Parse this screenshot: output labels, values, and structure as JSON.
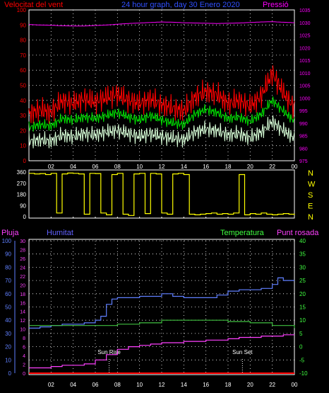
{
  "chart_data": [
    {
      "type": "line",
      "title": "24 hour graph, day  30 Enero 2020",
      "left_axis_label": "Velocitat del vent",
      "right_axis_label": "Pressió",
      "x_ticks": [
        "02",
        "04",
        "06",
        "08",
        "10",
        "12",
        "14",
        "16",
        "18",
        "20",
        "22",
        "00"
      ],
      "y_left_ticks": [
        "0",
        "10",
        "20",
        "30",
        "40",
        "50",
        "60",
        "70",
        "80",
        "90",
        "100"
      ],
      "y_left_range": [
        0,
        100
      ],
      "y_right_ticks": [
        "975",
        "980",
        "985",
        "990",
        "995",
        "1000",
        "1005",
        "1010",
        "1015",
        "1020",
        "1025",
        "1030",
        "1035"
      ],
      "y_right_range": [
        975,
        1035
      ],
      "grid": true,
      "colors": {
        "wind_gust": "#ff0000",
        "wind_avg": "#00e000",
        "wind_min": "#d8ffd8",
        "pressure": "#ff00ff",
        "left_axis": "#ff0000",
        "right_axis": "#ff00ff",
        "title": "#3050ff"
      },
      "series": [
        {
          "key": "pressure",
          "units": "right",
          "x": [
            0,
            1,
            2,
            3,
            4,
            5,
            6,
            7,
            8,
            9,
            10,
            11,
            12,
            13,
            14,
            15,
            16,
            17,
            18,
            19,
            20,
            21,
            22,
            23,
            24
          ],
          "values": [
            1029.2,
            1029.0,
            1028.9,
            1028.7,
            1028.6,
            1028.6,
            1028.8,
            1029.0,
            1029.3,
            1029.6,
            1029.8,
            1030.0,
            1030.2,
            1030.1,
            1029.9,
            1029.8,
            1029.7,
            1029.6,
            1029.7,
            1029.8,
            1030.0,
            1030.2,
            1030.3,
            1030.1,
            1029.9
          ]
        },
        {
          "key": "wind_gust",
          "units": "left",
          "x": [
            0,
            1,
            2,
            3,
            4,
            5,
            6,
            7,
            8,
            9,
            10,
            11,
            12,
            13,
            14,
            15,
            16,
            17,
            18,
            19,
            20,
            21,
            22,
            23,
            24
          ],
          "values": [
            31,
            34,
            32,
            40,
            38,
            41,
            39,
            42,
            44,
            40,
            38,
            41,
            37,
            35,
            33,
            42,
            46,
            44,
            38,
            40,
            36,
            43,
            58,
            45,
            35
          ]
        },
        {
          "key": "wind_avg",
          "units": "left",
          "x": [
            0,
            1,
            2,
            3,
            4,
            5,
            6,
            7,
            8,
            9,
            10,
            11,
            12,
            13,
            14,
            15,
            16,
            17,
            18,
            19,
            20,
            21,
            22,
            23,
            24
          ],
          "values": [
            22,
            24,
            23,
            28,
            27,
            29,
            28,
            30,
            32,
            29,
            27,
            30,
            27,
            25,
            24,
            31,
            34,
            32,
            28,
            29,
            26,
            31,
            40,
            33,
            26
          ]
        },
        {
          "key": "wind_min",
          "units": "left",
          "x": [
            0,
            1,
            2,
            3,
            4,
            5,
            6,
            7,
            8,
            9,
            10,
            11,
            12,
            13,
            14,
            15,
            16,
            17,
            18,
            19,
            20,
            21,
            22,
            23,
            24
          ],
          "values": [
            13,
            14,
            13,
            17,
            16,
            18,
            17,
            19,
            20,
            18,
            16,
            18,
            16,
            15,
            14,
            19,
            21,
            20,
            17,
            18,
            15,
            19,
            26,
            20,
            15
          ]
        }
      ]
    },
    {
      "type": "line",
      "y_ticks": [
        "0",
        "90",
        "180",
        "270",
        "360"
      ],
      "y_range": [
        0,
        360
      ],
      "direction_labels": [
        "N",
        "W",
        "S",
        "E",
        "N"
      ],
      "x_ticks": [
        "02",
        "04",
        "06",
        "08",
        "10",
        "12",
        "14",
        "16",
        "18",
        "20",
        "22",
        "00"
      ],
      "colors": {
        "direction": "#ffff00",
        "labels": "#ffff00",
        "axis": "#ffffff"
      },
      "series": [
        {
          "key": "wind_direction",
          "x": [
            0,
            0.5,
            1,
            1.5,
            2,
            2.5,
            3,
            3.5,
            4,
            4.5,
            5,
            5.5,
            6,
            6.5,
            7,
            7.5,
            8,
            8.5,
            9,
            9.5,
            10,
            10.5,
            11,
            11.5,
            12,
            12.5,
            13,
            13.5,
            14,
            14.5,
            15,
            15.5,
            16,
            16.5,
            17,
            17.5,
            18,
            18.5,
            19,
            19.5,
            20,
            20.5,
            21,
            21.5,
            22,
            22.5,
            23,
            23.5,
            24
          ],
          "values": [
            350,
            345,
            348,
            340,
            350,
            30,
            345,
            352,
            350,
            345,
            20,
            350,
            348,
            30,
            15,
            340,
            350,
            20,
            10,
            345,
            350,
            25,
            350,
            345,
            30,
            20,
            345,
            350,
            340,
            20,
            15,
            20,
            25,
            30,
            20,
            25,
            20,
            30,
            340,
            15,
            25,
            20,
            30,
            20,
            15,
            20,
            25,
            20,
            15
          ]
        }
      ]
    },
    {
      "type": "line",
      "labels": {
        "rain": "Pluja",
        "humidity": "Humitat",
        "temperature": "Temperatura",
        "dew_point": "Punt rosada"
      },
      "annotations": [
        "Sun Rise",
        "Sun Set"
      ],
      "annotation_hours": [
        7.25,
        19.3
      ],
      "x_ticks": [
        "02",
        "04",
        "06",
        "08",
        "10",
        "12",
        "14",
        "16",
        "18",
        "20",
        "22",
        "00"
      ],
      "y_rain_ticks": [
        "0",
        "2",
        "4",
        "6",
        "8",
        "10",
        "12",
        "14",
        "16",
        "18",
        "20",
        "22",
        "24",
        "26",
        "28",
        "30"
      ],
      "y_humidity_ticks": [
        "0",
        "10",
        "20",
        "30",
        "40",
        "50",
        "60",
        "70",
        "80",
        "90",
        "100"
      ],
      "y_temp_ticks": [
        "-10",
        "-5",
        "0",
        "5",
        "10",
        "15",
        "20",
        "25",
        "30",
        "35",
        "40"
      ],
      "y_temp_range": [
        -10,
        40
      ],
      "grid": true,
      "colors": {
        "rain": "#ff0000",
        "humidity": "#6080ff",
        "temperature": "#40c040",
        "dew_point": "#ff40ff",
        "rain_label": "#ff40ff",
        "humidity_label": "#6060ff",
        "temperature_label": "#40ff40",
        "dew_point_label": "#ff40ff"
      },
      "series": [
        {
          "key": "humidity",
          "units": "humidity",
          "x": [
            0,
            1,
            2,
            3,
            4,
            5,
            6,
            6.5,
            7,
            7.5,
            8,
            9,
            10,
            11,
            12,
            13,
            14,
            15,
            16,
            17,
            18,
            19,
            20,
            21,
            22,
            22.5,
            23,
            24
          ],
          "values": [
            34,
            35,
            36,
            37,
            37,
            38,
            40,
            43,
            52,
            56,
            57,
            57,
            58,
            58,
            60,
            58,
            57,
            57,
            57,
            59,
            62,
            63,
            63,
            64,
            67,
            72,
            70,
            70
          ]
        },
        {
          "key": "temperature",
          "units": "temp",
          "x": [
            0,
            2,
            4,
            6,
            8,
            10,
            12,
            14,
            16,
            18,
            20,
            22,
            24
          ],
          "values": [
            8,
            8,
            8,
            8,
            8.5,
            9,
            10,
            10,
            10,
            9.5,
            9,
            8,
            7
          ]
        },
        {
          "key": "dew_point",
          "units": "temp",
          "x": [
            0,
            1,
            2,
            3,
            4,
            5,
            6,
            7,
            8,
            9,
            10,
            11,
            12,
            13,
            14,
            15,
            16,
            17,
            18,
            19,
            20,
            21,
            22,
            23,
            24
          ],
          "values": [
            -8,
            -8,
            -7.5,
            -7,
            -7,
            -6.5,
            -5,
            -3,
            -1,
            0,
            0.5,
            1,
            1.5,
            1.5,
            2,
            2,
            2.5,
            2.5,
            3,
            3.5,
            3.5,
            4,
            4,
            4.5,
            4.5
          ]
        },
        {
          "key": "rain",
          "units": "rain",
          "x": [
            0,
            24
          ],
          "values": [
            0,
            0
          ]
        }
      ]
    }
  ]
}
